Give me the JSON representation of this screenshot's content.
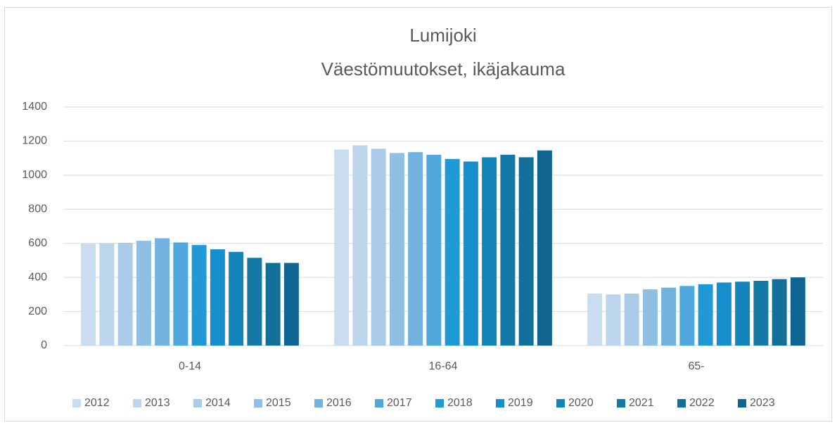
{
  "chart_data": {
    "type": "bar",
    "title": "Lumijoki",
    "subtitle": "Väestömuutokset, ikäjakauma",
    "categories": [
      "0-14",
      "16-64",
      "65-"
    ],
    "series": [
      {
        "name": "2012",
        "color": "#cadcef",
        "values": [
          600,
          1150,
          305
        ]
      },
      {
        "name": "2013",
        "color": "#bcd4ec",
        "values": [
          600,
          1175,
          300
        ]
      },
      {
        "name": "2014",
        "color": "#a9cbe8",
        "values": [
          603,
          1155,
          305
        ]
      },
      {
        "name": "2015",
        "color": "#8fbfe3",
        "values": [
          615,
          1130,
          330
        ]
      },
      {
        "name": "2016",
        "color": "#72b2de",
        "values": [
          630,
          1135,
          340
        ]
      },
      {
        "name": "2017",
        "color": "#4fa8dc",
        "values": [
          605,
          1120,
          350
        ]
      },
      {
        "name": "2018",
        "color": "#1f9ad6",
        "values": [
          590,
          1095,
          360
        ]
      },
      {
        "name": "2019",
        "color": "#1590cc",
        "values": [
          565,
          1080,
          370
        ]
      },
      {
        "name": "2020",
        "color": "#1485ba",
        "values": [
          550,
          1105,
          375
        ]
      },
      {
        "name": "2021",
        "color": "#137aa8",
        "values": [
          515,
          1120,
          380
        ]
      },
      {
        "name": "2022",
        "color": "#126f9a",
        "values": [
          485,
          1105,
          390
        ]
      },
      {
        "name": "2023",
        "color": "#0f6590",
        "values": [
          485,
          1145,
          400
        ]
      }
    ],
    "ylim": [
      0,
      1400
    ],
    "yticks": [
      0,
      200,
      400,
      600,
      800,
      1000,
      1200,
      1400
    ],
    "grid": true,
    "legend": "bottom"
  }
}
